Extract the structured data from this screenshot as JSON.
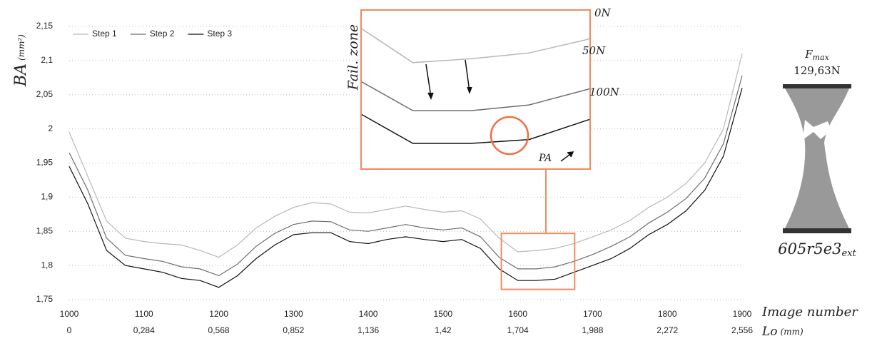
{
  "chart_data": {
    "type": "line",
    "y_label": "BA",
    "y_unit": "(mm²)",
    "x_label": "Image number",
    "x2_label": "Lo",
    "x2_unit": "(mm)",
    "x": [
      1000,
      1025,
      1050,
      1075,
      1100,
      1125,
      1150,
      1175,
      1200,
      1225,
      1250,
      1275,
      1300,
      1325,
      1350,
      1375,
      1400,
      1425,
      1450,
      1475,
      1500,
      1525,
      1550,
      1575,
      1600,
      1625,
      1650,
      1675,
      1700,
      1725,
      1750,
      1775,
      1800,
      1825,
      1850,
      1875,
      1900
    ],
    "series": [
      {
        "name": "Step 1",
        "color": "#b8b8b8",
        "values": [
          1.995,
          1.93,
          1.865,
          1.84,
          1.835,
          1.832,
          1.83,
          1.822,
          1.812,
          1.83,
          1.855,
          1.872,
          1.885,
          1.892,
          1.89,
          1.878,
          1.877,
          1.882,
          1.887,
          1.882,
          1.878,
          1.88,
          1.868,
          1.84,
          1.82,
          1.822,
          1.825,
          1.832,
          1.842,
          1.852,
          1.866,
          1.885,
          1.9,
          1.92,
          1.95,
          2.0,
          2.11
        ]
      },
      {
        "name": "Step 2",
        "color": "#6e6e6e",
        "values": [
          1.965,
          1.91,
          1.84,
          1.815,
          1.81,
          1.806,
          1.798,
          1.795,
          1.785,
          1.802,
          1.828,
          1.847,
          1.86,
          1.865,
          1.864,
          1.852,
          1.85,
          1.855,
          1.86,
          1.855,
          1.852,
          1.855,
          1.842,
          1.812,
          1.795,
          1.795,
          1.798,
          1.806,
          1.816,
          1.828,
          1.842,
          1.862,
          1.878,
          1.898,
          1.928,
          1.978,
          2.078
        ]
      },
      {
        "name": "Step 3",
        "color": "#111111",
        "values": [
          1.945,
          1.89,
          1.822,
          1.8,
          1.795,
          1.79,
          1.781,
          1.778,
          1.768,
          1.785,
          1.81,
          1.83,
          1.845,
          1.848,
          1.848,
          1.835,
          1.832,
          1.838,
          1.842,
          1.838,
          1.835,
          1.838,
          1.825,
          1.795,
          1.778,
          1.778,
          1.78,
          1.79,
          1.8,
          1.81,
          1.825,
          1.845,
          1.86,
          1.88,
          1.91,
          1.96,
          2.06
        ]
      }
    ],
    "xlim": [
      1000,
      1900
    ],
    "xticks": [
      1000,
      1100,
      1200,
      1300,
      1400,
      1500,
      1600,
      1700,
      1800,
      1900
    ],
    "x2lim": [
      0,
      2.556
    ],
    "x2ticks": [
      0,
      {
        "value": 0.284,
        "label": "0,284"
      },
      {
        "value": 0.568,
        "label": "0,568"
      },
      {
        "value": 0.852,
        "label": "0,852"
      },
      {
        "value": 1.136,
        "label": "1,136"
      },
      {
        "value": 1.42,
        "label": "1,42"
      },
      {
        "value": 1.704,
        "label": "1,704"
      },
      {
        "value": 1.988,
        "label": "1,988"
      },
      {
        "value": 2.272,
        "label": "2,272"
      },
      {
        "value": 2.556,
        "label": "2,556"
      }
    ],
    "ylim": [
      1.75,
      2.15
    ],
    "yticks": [
      {
        "value": 1.75,
        "label": "1,75"
      },
      {
        "value": 1.8,
        "label": "1,8"
      },
      {
        "value": 1.85,
        "label": "1,85"
      },
      {
        "value": 1.9,
        "label": "1,9"
      },
      {
        "value": 1.95,
        "label": "1,95"
      },
      {
        "value": 2,
        "label": "2"
      },
      {
        "value": 2.05,
        "label": "2,05"
      },
      {
        "value": 2.1,
        "label": "2,1"
      },
      {
        "value": 2.15,
        "label": "2,15"
      }
    ],
    "grid": true,
    "legend": "top-left",
    "inset": {
      "xlim": [
        1578,
        1676
      ],
      "ylim": [
        1.765,
        1.847
      ],
      "title": "Fail. zone",
      "labels": [
        "0N",
        "50N",
        "100N"
      ],
      "annotation": "PA"
    },
    "specimen": {
      "force_label": "F",
      "force_sub": "max",
      "force_value": "129,63N",
      "name": "605r5e3",
      "name_sub": "ext"
    }
  }
}
